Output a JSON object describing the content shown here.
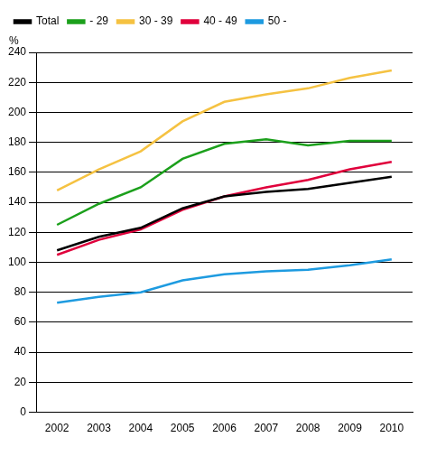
{
  "chart_data": {
    "type": "line",
    "ylabel": "%",
    "categories": [
      "2002",
      "2003",
      "2004",
      "2005",
      "2006",
      "2007",
      "2008",
      "2009",
      "2010"
    ],
    "series": [
      {
        "name": "Total",
        "color": "#000000",
        "values": [
          108,
          117,
          123,
          136,
          144,
          147,
          149,
          153,
          157
        ]
      },
      {
        "name": "- 29",
        "color": "#1ca01c",
        "values": [
          125,
          139,
          150,
          169,
          179,
          182,
          178,
          181,
          181
        ]
      },
      {
        "name": "30 - 39",
        "color": "#f5c242",
        "values": [
          148,
          162,
          174,
          194,
          207,
          212,
          216,
          223,
          228
        ]
      },
      {
        "name": "40 - 49",
        "color": "#e0003c",
        "values": [
          105,
          115,
          122,
          135,
          144,
          150,
          155,
          162,
          167
        ]
      },
      {
        "name": "50 -",
        "color": "#1e9be0",
        "values": [
          73,
          77,
          80,
          88,
          92,
          94,
          95,
          98,
          102
        ]
      }
    ],
    "ylim": [
      0,
      240
    ],
    "yticks": [
      0,
      20,
      40,
      60,
      80,
      100,
      120,
      140,
      160,
      180,
      200,
      220,
      240
    ],
    "grid": true,
    "legend": "top-left"
  }
}
